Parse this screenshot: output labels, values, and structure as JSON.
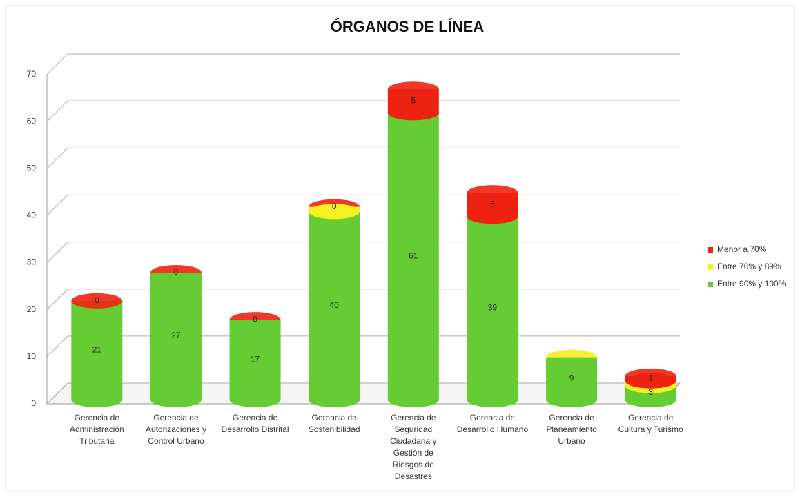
{
  "chart_data": {
    "type": "bar",
    "stacked": true,
    "title": "ÓRGANOS DE LÍNEA",
    "categories": [
      "Gerencia de Administración Tributaria",
      "Gerencia de Autorizaciones y Control Urbano",
      "Gerencia de Desarrollo Distrital",
      "Gerencia de Sostenibilidad",
      "Gerencia de Seguridad Ciudadana y Gestión de Riesgos de Desastres",
      "Gerencia de Desarrollo Humano",
      "Gerencia de Planeamiento Urbano",
      "Gerencia de Cultura y Turismo"
    ],
    "series": [
      {
        "name": "Entre 90% y 100%",
        "color": "#66cc33",
        "labels": true,
        "values": [
          21,
          27,
          17,
          40,
          61,
          39,
          9,
          3
        ]
      },
      {
        "name": "Entre 70% y 89%",
        "color": "#f5f020",
        "labels": false,
        "values": [
          0,
          0,
          0,
          1,
          0,
          0,
          0,
          1
        ]
      },
      {
        "name": "Menor a 70%",
        "color": "#ee2211",
        "labels": true,
        "values": [
          0,
          0,
          0,
          0,
          5,
          5,
          null,
          1
        ]
      }
    ],
    "ylim": [
      0,
      70
    ],
    "yticks": [
      0,
      10,
      20,
      30,
      40,
      50,
      60,
      70
    ],
    "grid": true,
    "legend": "right"
  }
}
